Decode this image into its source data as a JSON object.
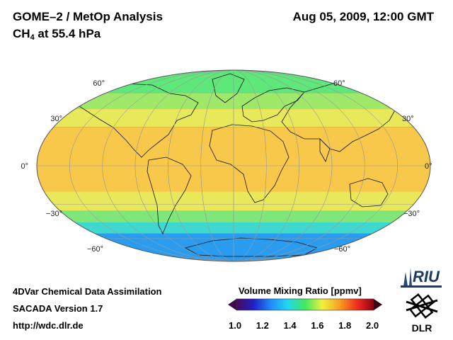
{
  "header": {
    "title": "GOME–2 / MetOp Analysis",
    "species_main": "CH",
    "species_sub": "4",
    "species_rest": " at 55.4 hPa",
    "datetime": "Aug 05, 2009, 12:00 GMT"
  },
  "map": {
    "projection": "Mollweide",
    "parallels": [
      60,
      30,
      0,
      -30,
      -60
    ],
    "lat_labels": {
      "n60": "60°",
      "n30": "30°",
      "eq": "0°",
      "s30": "−30°",
      "s60": "−60°"
    },
    "zones": [
      {
        "from_lat": 90,
        "to_lat": 60,
        "value": 1.45,
        "color": "#5fe87a"
      },
      {
        "from_lat": 60,
        "to_lat": 45,
        "value": 1.55,
        "color": "#9fe86a"
      },
      {
        "from_lat": 45,
        "to_lat": 30,
        "value": 1.62,
        "color": "#e8e85a"
      },
      {
        "from_lat": 30,
        "to_lat": -20,
        "value": 1.7,
        "color": "#f8c84a"
      },
      {
        "from_lat": -20,
        "to_lat": -35,
        "value": 1.6,
        "color": "#e8e85a"
      },
      {
        "from_lat": -35,
        "to_lat": -45,
        "value": 1.5,
        "color": "#7fe67a"
      },
      {
        "from_lat": -45,
        "to_lat": -55,
        "value": 1.4,
        "color": "#3ed8d0"
      },
      {
        "from_lat": -55,
        "to_lat": -90,
        "value": 1.25,
        "color": "#2a9cf0"
      }
    ]
  },
  "colorbar": {
    "title": "Volume Mixing Ratio [ppmv]",
    "min": 1.0,
    "max": 2.0,
    "ticks": [
      "1.0",
      "1.2",
      "1.4",
      "1.6",
      "1.8",
      "2.0"
    ],
    "stops": [
      "#4a0a5a",
      "#2020c8",
      "#1e8cff",
      "#20d8f0",
      "#40e860",
      "#f0f040",
      "#f8a020",
      "#f03020",
      "#900010"
    ]
  },
  "footer": {
    "line1": "4DVar Chemical Data Assimilation",
    "line2": "SACADA Version 1.7",
    "line3": "http://wdc.dlr.de"
  },
  "logos": {
    "riu": "RIU",
    "dlr": "DLR"
  }
}
